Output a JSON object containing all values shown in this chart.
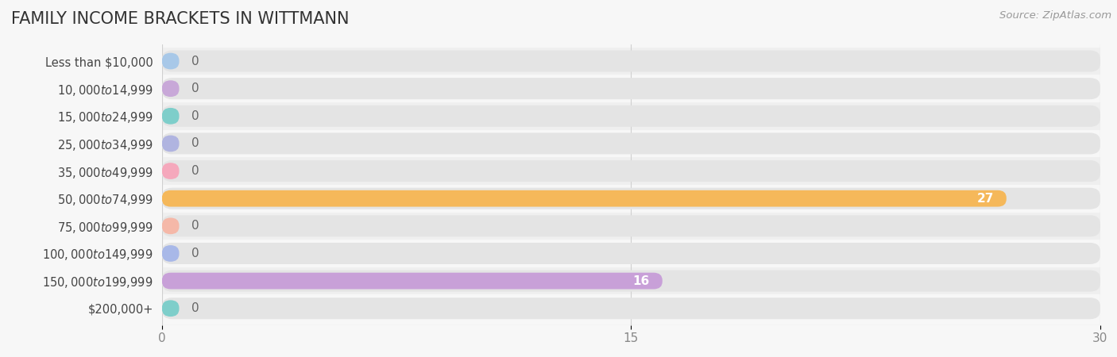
{
  "title": "FAMILY INCOME BRACKETS IN WITTMANN",
  "source": "Source: ZipAtlas.com",
  "categories": [
    "Less than $10,000",
    "$10,000 to $14,999",
    "$15,000 to $24,999",
    "$25,000 to $34,999",
    "$35,000 to $49,999",
    "$50,000 to $74,999",
    "$75,000 to $99,999",
    "$100,000 to $149,999",
    "$150,000 to $199,999",
    "$200,000+"
  ],
  "values": [
    0,
    0,
    0,
    0,
    0,
    27,
    0,
    0,
    16,
    0
  ],
  "bar_colors": [
    "#a8c8e8",
    "#c8a8d8",
    "#7ececa",
    "#b0b4e0",
    "#f5a8bc",
    "#f5b85a",
    "#f5b8a8",
    "#a8b8e8",
    "#c8a0d8",
    "#7ececa"
  ],
  "xlim": [
    0,
    30
  ],
  "xticks": [
    0,
    15,
    30
  ],
  "background_color": "#f7f7f7",
  "bar_bg_color": "#e4e4e4",
  "row_bg_even": "#efefef",
  "row_bg_odd": "#f7f7f7",
  "title_fontsize": 15,
  "label_fontsize": 10.5,
  "tick_fontsize": 11,
  "source_fontsize": 9.5,
  "value_label_color": "#666666",
  "value_label_color_white": "#ffffff",
  "title_color": "#333333",
  "label_color": "#444444",
  "grid_color": "#d0d0d0"
}
